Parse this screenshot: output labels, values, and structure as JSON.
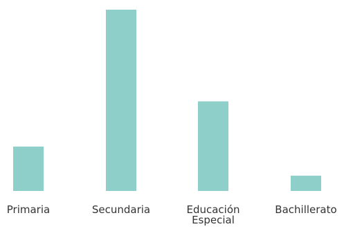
{
  "chart_data": {
    "type": "bar",
    "title": "",
    "xlabel": "",
    "ylabel": "",
    "categories": [
      "Primaria",
      "Secundaria",
      "Educación Especial",
      "Bachillerato"
    ],
    "category_lines": [
      [
        "Primaria"
      ],
      [
        "Secundaria"
      ],
      [
        "Educación",
        "Especial"
      ],
      [
        "Bachillerato"
      ]
    ],
    "values": [
      64,
      261,
      129,
      22
    ],
    "ylim": [
      0,
      261
    ],
    "bar_color": "#8ecfc9",
    "text_color": "#333333",
    "grid": false,
    "legend": "none",
    "axes_visible": false
  }
}
